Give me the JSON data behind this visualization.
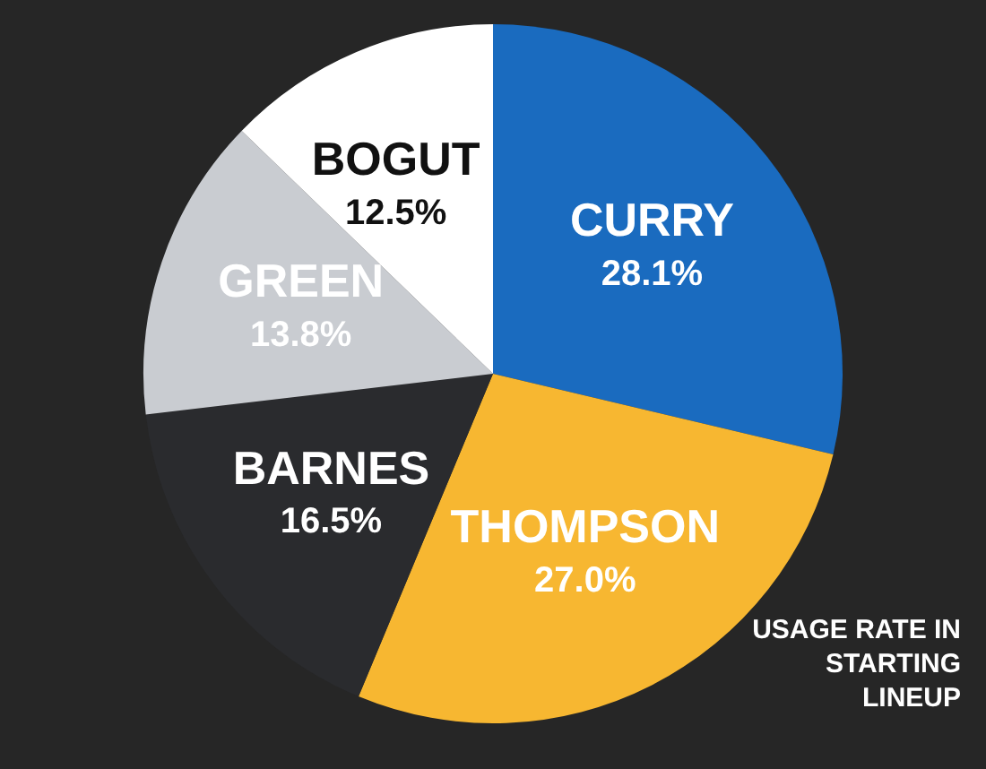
{
  "chart_data": {
    "type": "pie",
    "title": "USAGE RATE IN STARTING LINEUP",
    "categories": [
      "CURRY",
      "THOMPSON",
      "BARNES",
      "GREEN",
      "BOGUT"
    ],
    "values": [
      28.1,
      27.0,
      16.5,
      13.8,
      12.5
    ],
    "value_labels": [
      "28.1%",
      "27.0%",
      "16.5%",
      "13.8%",
      "12.5%"
    ],
    "colors": [
      "#1a6bbf",
      "#f7b731",
      "#2a2b2e",
      "#c9ccd1",
      "#ffffff"
    ],
    "legend": false
  }
}
